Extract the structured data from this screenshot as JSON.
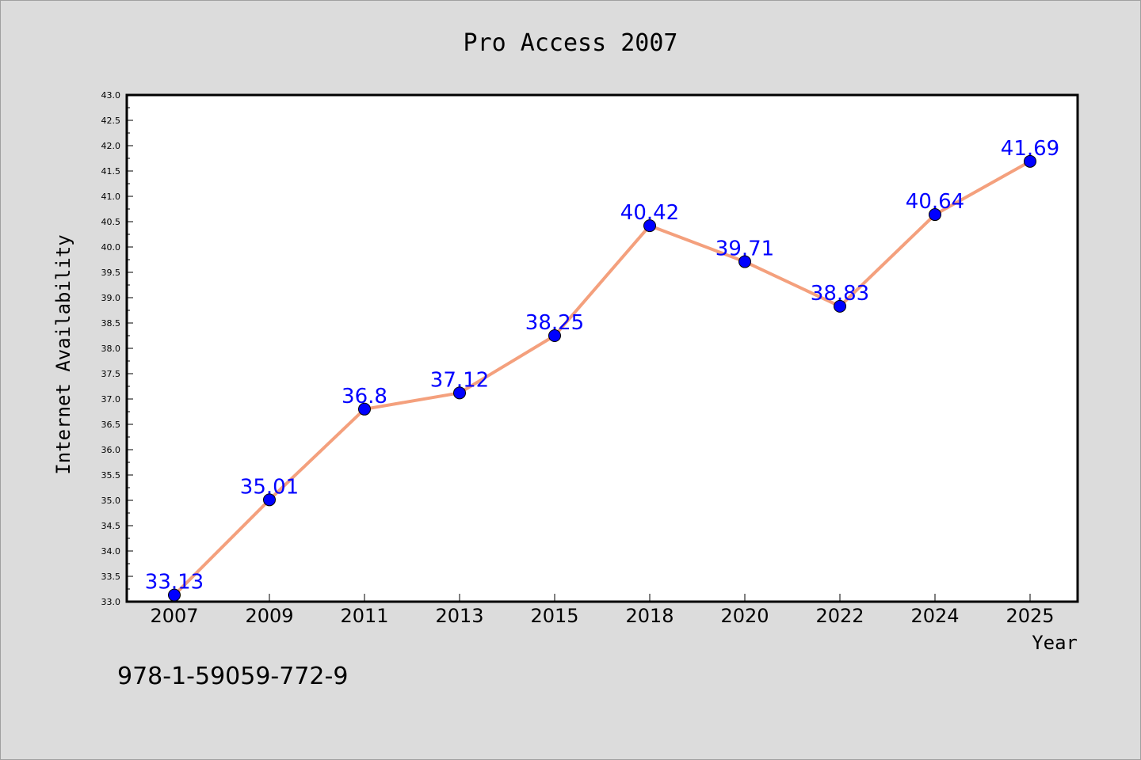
{
  "chart_data": {
    "type": "line",
    "title": "Pro Access 2007",
    "xlabel": "Year",
    "ylabel": "Internet Availability",
    "categories": [
      "2007",
      "2009",
      "2011",
      "2013",
      "2015",
      "2018",
      "2020",
      "2022",
      "2024",
      "2025"
    ],
    "series": [
      {
        "values": [
          33.13,
          35.01,
          36.8,
          37.12,
          38.25,
          40.42,
          39.71,
          38.83,
          40.64,
          41.69
        ],
        "labels": [
          "33.13",
          "35.01",
          "36.8",
          "37.12",
          "38.25",
          "40.42",
          "39.71",
          "38.83",
          "40.64",
          "41.69"
        ]
      }
    ],
    "ylim": [
      33.0,
      43.0
    ],
    "ytick_step": 0.5,
    "line_color": "#f4a07d",
    "marker_color": "#0000ff",
    "label_color": "#0000ff",
    "grid": false,
    "legend": "none"
  },
  "footer_text": "978-1-59059-772-9"
}
